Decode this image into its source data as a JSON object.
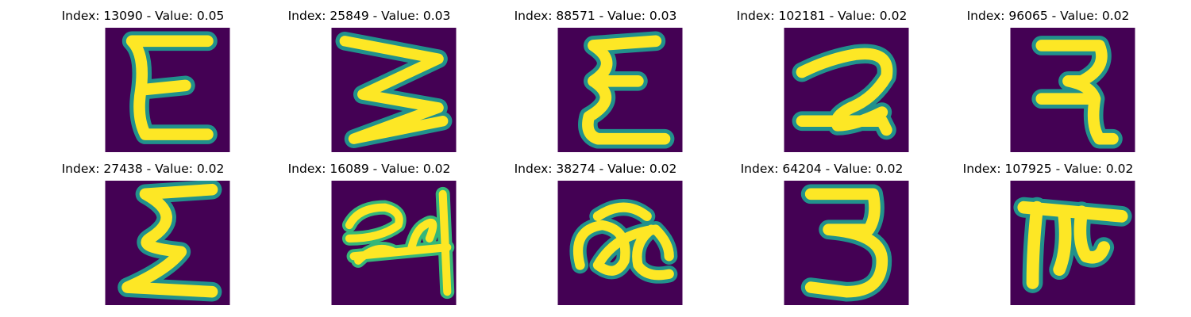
{
  "colors": {
    "background": "#440154",
    "mid1": "#31688e",
    "mid2": "#21918c",
    "mid3": "#35b779",
    "stroke": "#fde725"
  },
  "panels": [
    {
      "title": "Index: 13090 - Value: 0.05",
      "glyph": "E-curly-open"
    },
    {
      "title": "Index: 25849 - Value: 0.03",
      "glyph": "sideways-W"
    },
    {
      "title": "Index: 88571 - Value: 0.03",
      "glyph": "epsilon-like"
    },
    {
      "title": "Index: 102181 - Value: 0.02",
      "glyph": "two-looped"
    },
    {
      "title": "Index: 96065 - Value: 0.02",
      "glyph": "devanagari-like"
    },
    {
      "title": "Index: 27438 - Value: 0.02",
      "glyph": "sigma-like"
    },
    {
      "title": "Index: 16089 - Value: 0.02",
      "glyph": "script-cluster"
    },
    {
      "title": "Index: 38274 - Value: 0.02",
      "glyph": "loop-cursive"
    },
    {
      "title": "Index: 64204 - Value: 0.02",
      "glyph": "three"
    },
    {
      "title": "Index: 107925 - Value: 0.02",
      "glyph": "pi-like"
    }
  ]
}
